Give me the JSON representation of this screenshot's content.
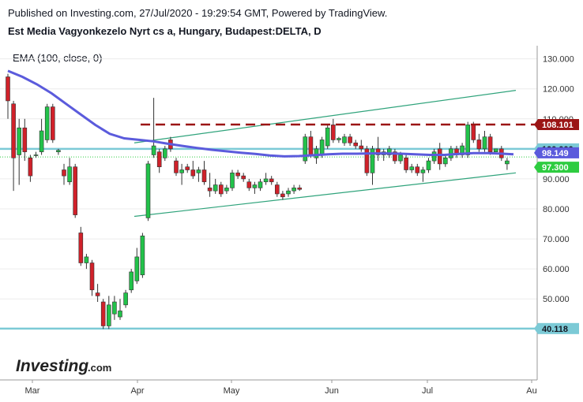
{
  "header": {
    "published": "Published on Investing.com, 27/Jul/2020 - 19:29:54 GMT, Powered by TradingView.",
    "symbol": "Est Media Vagyonkezelo Nyrt cs a, Hungary, Budapest:DELTA, D",
    "indicator": "EMA (100, close, 0)"
  },
  "logo": {
    "text": "Investing",
    "suffix": ".com"
  },
  "colors": {
    "up": "#22c24a",
    "down": "#d0212a",
    "ema": "#5b5bdc",
    "resistance": "#9b1515",
    "hline": "#7ccad6",
    "channel": "#2fa37b",
    "price_dotted": "#2ecc40"
  },
  "chart_data": {
    "type": "candlestick",
    "title": "Est Media Vagyonkezelo Nyrt cs a, Hungary, Budapest:DELTA, D",
    "xlabel": "",
    "ylabel": "",
    "ylim": [
      23,
      137
    ],
    "y_ticks": [
      "130.000",
      "120.000",
      "110.000",
      "100.000",
      "90.000",
      "80.000",
      "70.000",
      "60.000",
      "50.000",
      "40.000"
    ],
    "x_ticks": [
      "Mar",
      "Apr",
      "May",
      "Jun",
      "Jul",
      "Au"
    ],
    "price_tags": [
      {
        "label": "108.101",
        "value": 108.1,
        "style": "resistance"
      },
      {
        "label": "100.000",
        "value": 100.0,
        "style": "hline"
      },
      {
        "label": "98.149",
        "value": 98.15,
        "style": "ema"
      },
      {
        "label": "97.300",
        "value": 97.3,
        "style": "last"
      },
      {
        "label": "40.118",
        "value": 40.12,
        "style": "hline"
      }
    ],
    "horizontal_lines": [
      100.0,
      40.12
    ],
    "resistance_line": {
      "value": 108.1,
      "from_index": 37,
      "to_index": 139
    },
    "last_price": 97.3,
    "channel": {
      "upper": {
        "from": [
          37,
          102
        ],
        "to": [
          139,
          119.5
        ]
      },
      "lower": {
        "from": [
          37,
          77.5
        ],
        "to": [
          139,
          92
        ]
      }
    },
    "ema_100": [
      [
        0,
        126
      ],
      [
        4,
        124
      ],
      [
        8,
        121.5
      ],
      [
        12,
        118.5
      ],
      [
        16,
        115
      ],
      [
        20,
        111.5
      ],
      [
        24,
        108
      ],
      [
        28,
        105
      ],
      [
        32,
        103.5
      ],
      [
        36,
        103
      ],
      [
        40,
        102.5
      ],
      [
        44,
        101.7
      ],
      [
        48,
        101
      ],
      [
        52,
        100.3
      ],
      [
        56,
        99.7
      ],
      [
        60,
        99.2
      ],
      [
        64,
        98.7
      ],
      [
        68,
        98.3
      ],
      [
        72,
        97.8
      ],
      [
        76,
        97.5
      ],
      [
        80,
        97.6
      ],
      [
        84,
        97.9
      ],
      [
        88,
        98.2
      ],
      [
        92,
        98.4
      ],
      [
        96,
        98.4
      ],
      [
        100,
        98.5
      ],
      [
        104,
        98.5
      ],
      [
        108,
        98.4
      ],
      [
        112,
        98.2
      ],
      [
        116,
        98.0
      ],
      [
        120,
        98.0
      ],
      [
        124,
        98.3
      ],
      [
        128,
        98.6
      ],
      [
        132,
        98.6
      ],
      [
        136,
        98.4
      ],
      [
        139,
        98.2
      ]
    ],
    "candles": [
      {
        "i": 0,
        "o": 124,
        "h": 125,
        "l": 110,
        "c": 116
      },
      {
        "i": 1,
        "o": 115,
        "h": 116,
        "l": 86,
        "c": 97
      },
      {
        "i": 2,
        "o": 98,
        "h": 110,
        "l": 88,
        "c": 107
      },
      {
        "i": 3,
        "o": 107,
        "h": 110,
        "l": 96,
        "c": 99
      },
      {
        "i": 4,
        "o": 97,
        "h": 98,
        "l": 89,
        "c": 91
      },
      {
        "i": 5,
        "o": 98,
        "h": 99,
        "l": 97,
        "c": 98
      },
      {
        "i": 6,
        "o": 99,
        "h": 110,
        "l": 98,
        "c": 106
      },
      {
        "i": 7,
        "o": 103,
        "h": 115,
        "l": 102,
        "c": 114
      },
      {
        "i": 8,
        "o": 114,
        "h": 115,
        "l": 102,
        "c": 103
      },
      {
        "i": 9,
        "o": 99,
        "h": 100,
        "l": 98,
        "c": 99.5
      },
      {
        "i": 10,
        "o": 93,
        "h": 95,
        "l": 88,
        "c": 91
      },
      {
        "i": 11,
        "o": 89,
        "h": 97,
        "l": 88,
        "c": 94
      },
      {
        "i": 12,
        "o": 94,
        "h": 95,
        "l": 77,
        "c": 78
      },
      {
        "i": 13,
        "o": 72,
        "h": 74,
        "l": 61,
        "c": 62
      },
      {
        "i": 14,
        "o": 62,
        "h": 65,
        "l": 60,
        "c": 64
      },
      {
        "i": 15,
        "o": 62,
        "h": 63,
        "l": 51,
        "c": 53
      },
      {
        "i": 16,
        "o": 52,
        "h": 55,
        "l": 49,
        "c": 51
      },
      {
        "i": 17,
        "o": 49,
        "h": 50,
        "l": 40,
        "c": 41
      },
      {
        "i": 18,
        "o": 41,
        "h": 51,
        "l": 40,
        "c": 48
      },
      {
        "i": 19,
        "o": 45,
        "h": 51,
        "l": 43,
        "c": 49
      },
      {
        "i": 20,
        "o": 44,
        "h": 50,
        "l": 43,
        "c": 46
      },
      {
        "i": 21,
        "o": 48,
        "h": 53,
        "l": 47,
        "c": 52
      },
      {
        "i": 22,
        "o": 53,
        "h": 60,
        "l": 52,
        "c": 59
      },
      {
        "i": 23,
        "o": 56,
        "h": 67,
        "l": 55,
        "c": 64
      },
      {
        "i": 24,
        "o": 58,
        "h": 72,
        "l": 57,
        "c": 71
      },
      {
        "i": 25,
        "o": 77,
        "h": 96,
        "l": 76,
        "c": 95
      },
      {
        "i": 26,
        "o": 98,
        "h": 117,
        "l": 97,
        "c": 101
      },
      {
        "i": 27,
        "o": 99,
        "h": 100,
        "l": 92,
        "c": 94
      },
      {
        "i": 28,
        "o": 97,
        "h": 101,
        "l": 96,
        "c": 100
      },
      {
        "i": 29,
        "o": 103,
        "h": 104,
        "l": 99,
        "c": 100
      },
      {
        "i": 30,
        "o": 96,
        "h": 97,
        "l": 91,
        "c": 92
      },
      {
        "i": 31,
        "o": 92,
        "h": 95,
        "l": 88,
        "c": 93
      },
      {
        "i": 32,
        "o": 94,
        "h": 95,
        "l": 92,
        "c": 93
      },
      {
        "i": 33,
        "o": 93,
        "h": 96,
        "l": 90,
        "c": 91
      },
      {
        "i": 34,
        "o": 92,
        "h": 94,
        "l": 89,
        "c": 93
      },
      {
        "i": 35,
        "o": 93,
        "h": 96,
        "l": 88,
        "c": 89
      },
      {
        "i": 36,
        "o": 87,
        "h": 92,
        "l": 84,
        "c": 86
      },
      {
        "i": 37,
        "o": 86,
        "h": 90,
        "l": 85,
        "c": 88
      },
      {
        "i": 38,
        "o": 88,
        "h": 89,
        "l": 84,
        "c": 85
      },
      {
        "i": 39,
        "o": 86,
        "h": 88,
        "l": 85,
        "c": 87
      },
      {
        "i": 40,
        "o": 87,
        "h": 93,
        "l": 86,
        "c": 92
      },
      {
        "i": 41,
        "o": 92,
        "h": 93,
        "l": 90,
        "c": 91
      },
      {
        "i": 42,
        "o": 91,
        "h": 92,
        "l": 89,
        "c": 90
      },
      {
        "i": 43,
        "o": 89,
        "h": 90,
        "l": 86,
        "c": 87
      },
      {
        "i": 44,
        "o": 87,
        "h": 89,
        "l": 85,
        "c": 88
      },
      {
        "i": 45,
        "o": 87,
        "h": 90,
        "l": 86,
        "c": 89
      },
      {
        "i": 46,
        "o": 89,
        "h": 92,
        "l": 88,
        "c": 90
      },
      {
        "i": 47,
        "o": 90,
        "h": 91,
        "l": 88,
        "c": 89
      },
      {
        "i": 48,
        "o": 88,
        "h": 89,
        "l": 84,
        "c": 85
      },
      {
        "i": 49,
        "o": 85,
        "h": 86,
        "l": 83,
        "c": 84
      },
      {
        "i": 50,
        "o": 85,
        "h": 87,
        "l": 84,
        "c": 86
      },
      {
        "i": 51,
        "o": 86,
        "h": 88,
        "l": 85,
        "c": 87
      },
      {
        "i": 52,
        "o": 87,
        "h": 88,
        "l": 86,
        "c": 86.5
      },
      {
        "i": 53,
        "o": 96,
        "h": 105,
        "l": 95,
        "c": 104
      },
      {
        "i": 54,
        "o": 104,
        "h": 106,
        "l": 97,
        "c": 98
      },
      {
        "i": 55,
        "o": 97,
        "h": 101,
        "l": 95,
        "c": 100
      },
      {
        "i": 56,
        "o": 98,
        "h": 104,
        "l": 97,
        "c": 103
      },
      {
        "i": 57,
        "o": 101,
        "h": 108,
        "l": 100,
        "c": 107
      },
      {
        "i": 58,
        "o": 108,
        "h": 110,
        "l": 102,
        "c": 103
      },
      {
        "i": 59,
        "o": 103,
        "h": 104,
        "l": 102,
        "c": 103.5
      },
      {
        "i": 60,
        "o": 102,
        "h": 105,
        "l": 101,
        "c": 104
      },
      {
        "i": 61,
        "o": 104,
        "h": 105,
        "l": 101,
        "c": 102
      },
      {
        "i": 62,
        "o": 102,
        "h": 103,
        "l": 100,
        "c": 101
      },
      {
        "i": 63,
        "o": 101,
        "h": 103,
        "l": 99,
        "c": 100
      },
      {
        "i": 64,
        "o": 100,
        "h": 101,
        "l": 91,
        "c": 92
      },
      {
        "i": 65,
        "o": 92,
        "h": 101,
        "l": 88,
        "c": 100
      },
      {
        "i": 66,
        "o": 100,
        "h": 104,
        "l": 96,
        "c": 98
      },
      {
        "i": 67,
        "o": 98,
        "h": 100,
        "l": 96,
        "c": 99
      },
      {
        "i": 68,
        "o": 98,
        "h": 101,
        "l": 97,
        "c": 100
      },
      {
        "i": 69,
        "o": 99,
        "h": 100,
        "l": 95,
        "c": 96
      },
      {
        "i": 70,
        "o": 96,
        "h": 99,
        "l": 95,
        "c": 98
      },
      {
        "i": 71,
        "o": 97,
        "h": 98,
        "l": 92,
        "c": 93
      },
      {
        "i": 72,
        "o": 93,
        "h": 95,
        "l": 92,
        "c": 94
      },
      {
        "i": 73,
        "o": 94,
        "h": 95,
        "l": 91,
        "c": 92
      },
      {
        "i": 74,
        "o": 92,
        "h": 94,
        "l": 89,
        "c": 93
      },
      {
        "i": 75,
        "o": 93,
        "h": 97,
        "l": 92,
        "c": 96
      },
      {
        "i": 76,
        "o": 96,
        "h": 100,
        "l": 95,
        "c": 99
      },
      {
        "i": 77,
        "o": 100,
        "h": 102,
        "l": 93,
        "c": 95
      },
      {
        "i": 78,
        "o": 95,
        "h": 98,
        "l": 94,
        "c": 97
      },
      {
        "i": 79,
        "o": 97,
        "h": 101,
        "l": 96,
        "c": 100
      },
      {
        "i": 80,
        "o": 100,
        "h": 101,
        "l": 97,
        "c": 98
      },
      {
        "i": 81,
        "o": 98,
        "h": 102,
        "l": 97,
        "c": 101
      },
      {
        "i": 82,
        "o": 98,
        "h": 109,
        "l": 97,
        "c": 108
      },
      {
        "i": 83,
        "o": 108,
        "h": 109,
        "l": 102,
        "c": 103
      },
      {
        "i": 84,
        "o": 103,
        "h": 105,
        "l": 99,
        "c": 100
      },
      {
        "i": 85,
        "o": 100,
        "h": 106,
        "l": 99,
        "c": 104
      },
      {
        "i": 86,
        "o": 104,
        "h": 105,
        "l": 98,
        "c": 99
      },
      {
        "i": 87,
        "o": 99,
        "h": 100,
        "l": 99,
        "c": 100
      },
      {
        "i": 88,
        "o": 100,
        "h": 101,
        "l": 96,
        "c": 97
      },
      {
        "i": 89,
        "o": 95,
        "h": 97,
        "l": 93,
        "c": 96
      }
    ]
  }
}
